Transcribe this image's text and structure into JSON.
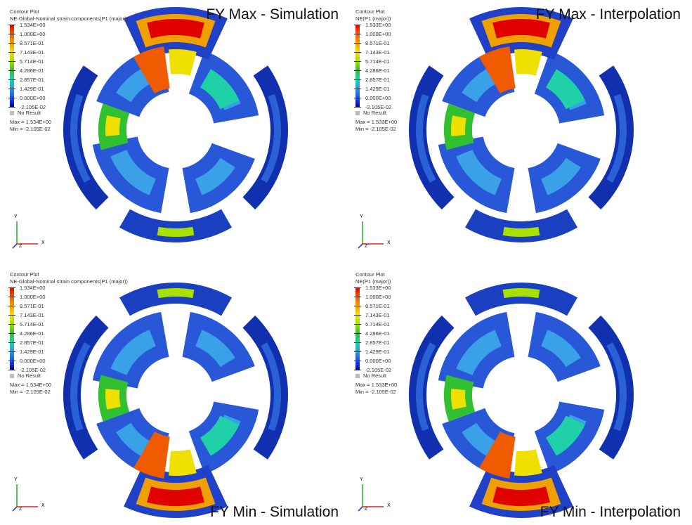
{
  "panels": [
    {
      "title": "FY Max - Simulation",
      "legend": {
        "heading": "Contour Plot",
        "subtitle": "NE-Global-Nominal strain components(P1 (major))",
        "labels": [
          "1.534E+00",
          "1.000E+00",
          "8.571E-01",
          "7.143E-01",
          "5.714E-01",
          "4.286E-01",
          "2.857E-01",
          "1.429E-01",
          "0.000E+00",
          "-2.105E-02"
        ],
        "no_result": "No Result",
        "max": "Max = 1.534E+00",
        "min": "Min = -2.105E-02"
      },
      "hotspot": "top"
    },
    {
      "title": "FY Max - Interpolation",
      "legend": {
        "heading": "Contour Plot",
        "subtitle": "NE(P1 (major))",
        "labels": [
          "1.533E+00",
          "1.000E+00",
          "8.571E-01",
          "7.143E-01",
          "5.714E-01",
          "4.286E-01",
          "2.857E-01",
          "1.429E-01",
          "0.000E+00",
          "-2.105E-02"
        ],
        "no_result": "No Result",
        "max": "Max = 1.533E+00",
        "min": "Min = -2.105E-02"
      },
      "hotspot": "top"
    },
    {
      "title": "FY Min - Simulation",
      "legend": {
        "heading": "Contour Plot",
        "subtitle": "NE-Global-Nominal strain components(P1 (major))",
        "labels": [
          "1.534E+00",
          "1.000E+00",
          "8.571E-01",
          "7.143E-01",
          "5.714E-01",
          "4.286E-01",
          "2.857E-01",
          "1.429E-01",
          "0.000E+00",
          "-2.105E-02"
        ],
        "no_result": "No Result",
        "max": "Max = 1.534E+00",
        "min": "Min = -2.105E-02"
      },
      "hotspot": "bottom"
    },
    {
      "title": "FY Min - Interpolation",
      "legend": {
        "heading": "Contour Plot",
        "subtitle": "NE(P1 (major))",
        "labels": [
          "1.533E+00",
          "1.000E+00",
          "8.571E-01",
          "7.143E-01",
          "5.714E-01",
          "4.286E-01",
          "2.857E-01",
          "1.429E-01",
          "0.000E+00",
          "-2.105E-02"
        ],
        "no_result": "No Result",
        "max": "Max = 1.533E+00",
        "min": "Min = -2.105E-02"
      },
      "hotspot": "bottom"
    }
  ],
  "axes": {
    "x": "X",
    "y": "Y",
    "z": "Z"
  },
  "colormap": [
    "#e00000",
    "#f05a00",
    "#f0a000",
    "#f0e000",
    "#a8e000",
    "#30c030",
    "#20d0a8",
    "#20a0e0",
    "#2050e0",
    "#0000b0"
  ],
  "no_result_color": "#bbbbbb"
}
